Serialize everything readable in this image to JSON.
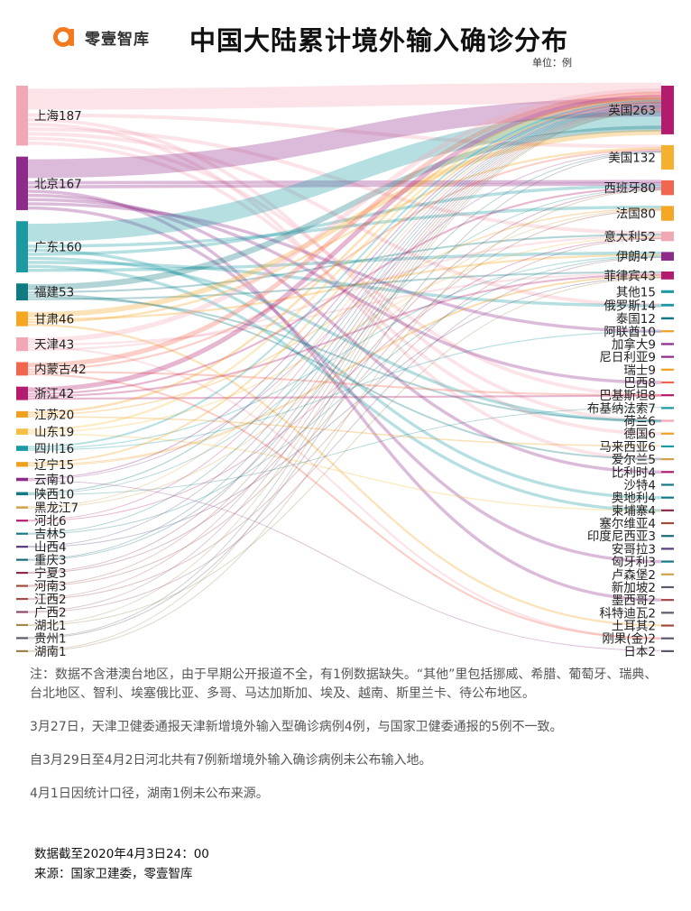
{
  "header": {
    "brand_name": "零壹智库",
    "brand_icon": "a-logo-icon",
    "brand_color": "#f47a20",
    "title": "中国大陆累计境外输入确诊分布",
    "unit": "单位：例"
  },
  "chart_data": {
    "type": "sankey",
    "title": "中国大陆累计境外输入确诊分布",
    "unit": "例",
    "sources": [
      {
        "name": "上海",
        "value": 187,
        "color": "#f2a7b4"
      },
      {
        "name": "北京",
        "value": 167,
        "color": "#8e2a8a"
      },
      {
        "name": "广东",
        "value": 160,
        "color": "#1b9aa4"
      },
      {
        "name": "福建",
        "value": 53,
        "color": "#117a83"
      },
      {
        "name": "甘肃",
        "value": 46,
        "color": "#f5a623"
      },
      {
        "name": "天津",
        "value": 43,
        "color": "#f2a7b4"
      },
      {
        "name": "内蒙古",
        "value": 42,
        "color": "#f26650"
      },
      {
        "name": "浙江",
        "value": 42,
        "color": "#b31b6e"
      },
      {
        "name": "江苏",
        "value": 20,
        "color": "#f0a020"
      },
      {
        "name": "山东",
        "value": 19,
        "color": "#f5c044"
      },
      {
        "name": "四川",
        "value": 16,
        "color": "#1b9aa4"
      },
      {
        "name": "辽宁",
        "value": 15,
        "color": "#f0a020"
      },
      {
        "name": "云南",
        "value": 10,
        "color": "#8e2a8a"
      },
      {
        "name": "陕西",
        "value": 10,
        "color": "#117a83"
      },
      {
        "name": "黑龙江",
        "value": 7,
        "color": "#d4a04a"
      },
      {
        "name": "河北",
        "value": 6,
        "color": "#b31b6e"
      },
      {
        "name": "吉林",
        "value": 5,
        "color": "#117a83"
      },
      {
        "name": "山西",
        "value": 4,
        "color": "#5a3a7a"
      },
      {
        "name": "重庆",
        "value": 3,
        "color": "#1b6a7a"
      },
      {
        "name": "宁夏",
        "value": 3,
        "color": "#8e2a4a"
      },
      {
        "name": "河南",
        "value": 3,
        "color": "#a04a3a"
      },
      {
        "name": "江西",
        "value": 2,
        "color": "#a04a4a"
      },
      {
        "name": "广西",
        "value": 2,
        "color": "#8e4a6a"
      },
      {
        "name": "湖北",
        "value": 1,
        "color": "#a08a4a"
      },
      {
        "name": "贵州",
        "value": 1,
        "color": "#5a5a6a"
      },
      {
        "name": "湖南",
        "value": 1,
        "color": "#a0804a"
      }
    ],
    "targets": [
      {
        "name": "英国",
        "value": 263,
        "color": "#b31b6e"
      },
      {
        "name": "美国",
        "value": 132,
        "color": "#f5b030"
      },
      {
        "name": "西班牙",
        "value": 80,
        "color": "#f26650"
      },
      {
        "name": "法国",
        "value": 80,
        "color": "#f5a623"
      },
      {
        "name": "意大利",
        "value": 52,
        "color": "#f2a7b4"
      },
      {
        "name": "伊朗",
        "value": 47,
        "color": "#8e2a8a"
      },
      {
        "name": "菲律宾",
        "value": 43,
        "color": "#b31b6e"
      },
      {
        "name": "其他",
        "value": 15,
        "color": "#1b9aa4"
      },
      {
        "name": "俄罗斯",
        "value": 14,
        "color": "#1b9aa4"
      },
      {
        "name": "泰国",
        "value": 12,
        "color": "#117a83"
      },
      {
        "name": "阿联酋",
        "value": 10,
        "color": "#f0a020"
      },
      {
        "name": "加拿大",
        "value": 9,
        "color": "#8e2a8a"
      },
      {
        "name": "尼日利亚",
        "value": 9,
        "color": "#8e2a8a"
      },
      {
        "name": "瑞士",
        "value": 9,
        "color": "#f0a020"
      },
      {
        "name": "巴西",
        "value": 8,
        "color": "#f26650"
      },
      {
        "name": "巴基斯坦",
        "value": 8,
        "color": "#b31b6e"
      },
      {
        "name": "布基纳法索",
        "value": 7,
        "color": "#1b9aa4"
      },
      {
        "name": "荷兰",
        "value": 6,
        "color": "#f2a7b4"
      },
      {
        "name": "德国",
        "value": 6,
        "color": "#f0a020"
      },
      {
        "name": "马来西亚",
        "value": 6,
        "color": "#1b9aa4"
      },
      {
        "name": "爱尔兰",
        "value": 5,
        "color": "#d4a04a"
      },
      {
        "name": "比利时",
        "value": 4,
        "color": "#b31b6e"
      },
      {
        "name": "沙特",
        "value": 4,
        "color": "#117a83"
      },
      {
        "name": "奥地利",
        "value": 4,
        "color": "#117a83"
      },
      {
        "name": "柬埔寨",
        "value": 4,
        "color": "#8e2a4a"
      },
      {
        "name": "塞尔维亚",
        "value": 4,
        "color": "#a04a3a"
      },
      {
        "name": "印度尼西亚",
        "value": 3,
        "color": "#1b6a7a"
      },
      {
        "name": "安哥拉",
        "value": 3,
        "color": "#5a3a7a"
      },
      {
        "name": "匈牙利",
        "value": 3,
        "color": "#117a83"
      },
      {
        "name": "卢森堡",
        "value": 2,
        "color": "#d4a04a"
      },
      {
        "name": "新加坡",
        "value": 2,
        "color": "#5a5a6a"
      },
      {
        "name": "墨西哥",
        "value": 2,
        "color": "#a04a4a"
      },
      {
        "name": "科特迪瓦",
        "value": 2,
        "color": "#5a5a6a"
      },
      {
        "name": "土耳其",
        "value": 2,
        "color": "#a04a3a"
      },
      {
        "name": "刚果(金)",
        "value": 2,
        "color": "#5a5a6a"
      },
      {
        "name": "日本",
        "value": 2,
        "color": "#5a5a6a"
      }
    ]
  },
  "notes": {
    "note1": "注：数据不含港澳台地区，由于早期公开报道不全，有1例数据缺失。“其他”里包括挪威、希腊、葡萄牙、瑞典、台北地区、智利、埃塞俄比亚、多哥、马达加斯加、埃及、越南、斯里兰卡、待公布地区。",
    "note2": "3月27日，天津卫健委通报天津新增境外输入型确诊病例4例，与国家卫健委通报的5例不一致。",
    "note3": "自3月29日至4月2日河北共有7例新增境外输入确诊病例未公布输入地。",
    "note4": "4月1日因统计口径，湖南1例未公布来源。"
  },
  "footer": {
    "cutoff": "数据截至2020年4月3日24：00",
    "source": "来源：国家卫建委，零壹智库"
  }
}
